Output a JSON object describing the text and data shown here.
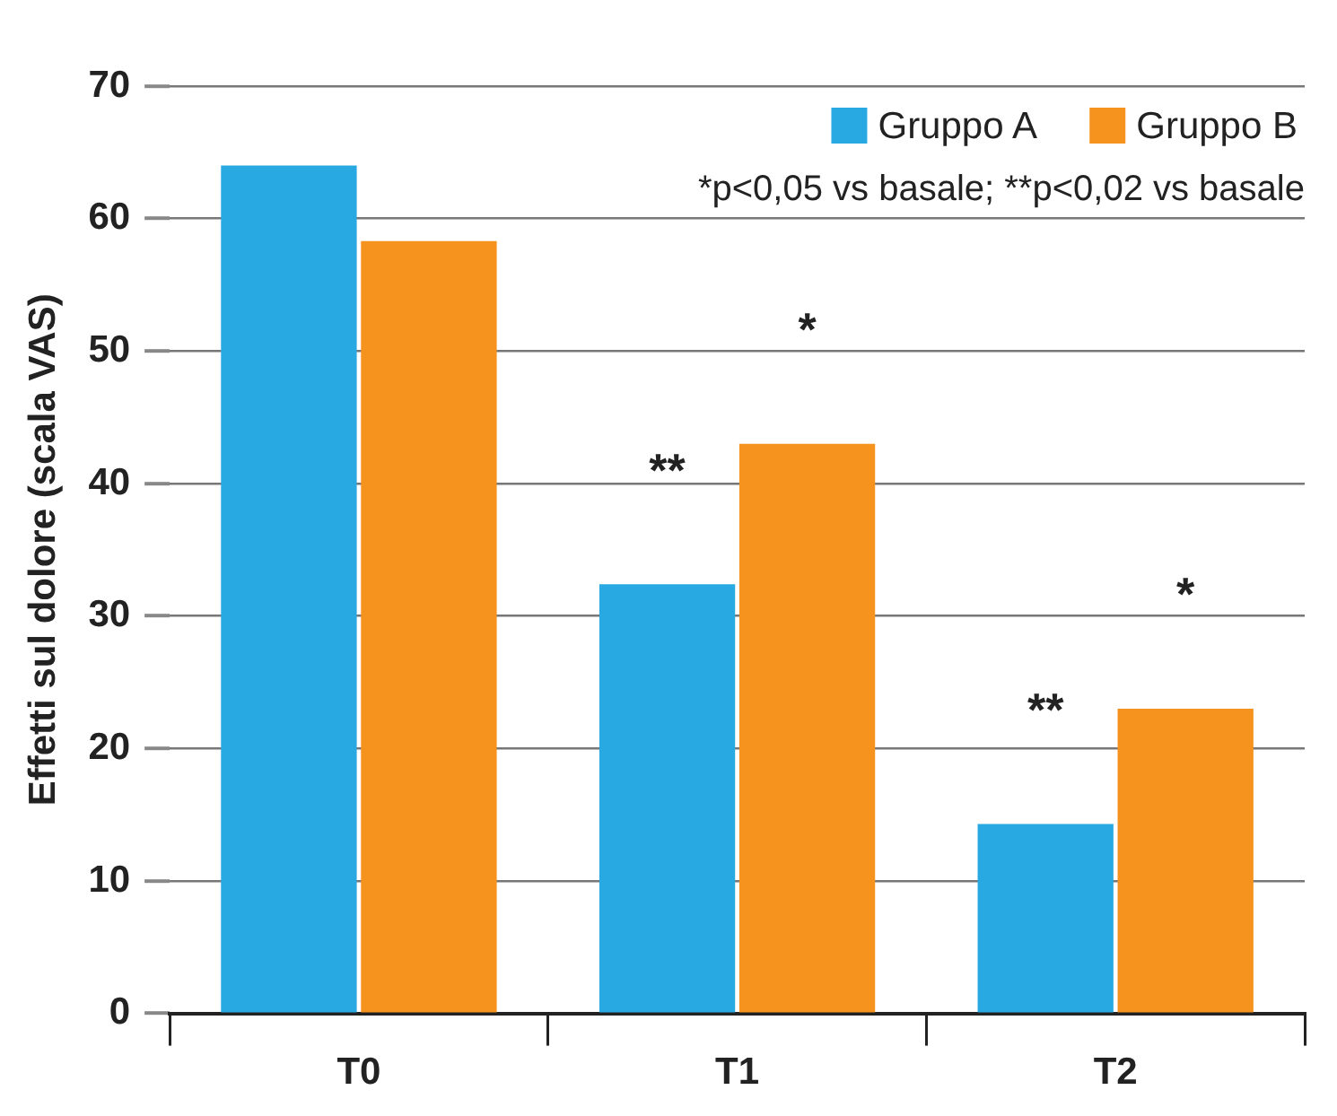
{
  "chart_data": {
    "type": "bar",
    "ylabel": "Effetti sul dolore (scala VAS)",
    "categories": [
      "T0",
      "T1",
      "T2"
    ],
    "series": [
      {
        "name": "Gruppo A",
        "color": "#29a9e1",
        "values": [
          64,
          32.4,
          14.3
        ]
      },
      {
        "name": "Gruppo B",
        "color": "#f6921e",
        "values": [
          58.3,
          43,
          23
        ]
      }
    ],
    "ylim": [
      0,
      70
    ],
    "yticks": [
      0,
      10,
      20,
      30,
      40,
      50,
      60,
      70
    ],
    "grid": "y",
    "legend": "top right",
    "annotations": [
      "*p<0,05 vs basale; **p<0,02 vs basale",
      {
        "text": "**",
        "x": "T1",
        "y": 32.4
      },
      {
        "text": "*",
        "x": "T1",
        "y": 43
      },
      {
        "text": "**",
        "x": "T2",
        "y": 14.3
      },
      {
        "text": "*",
        "x": "T2",
        "y": 23
      }
    ]
  }
}
